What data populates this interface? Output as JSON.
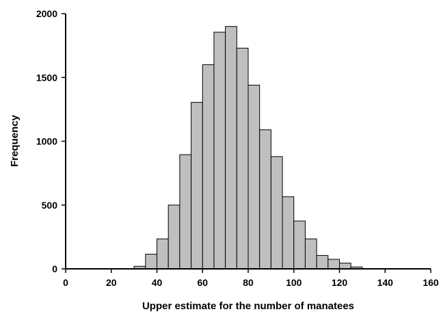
{
  "chart_data": {
    "type": "bar",
    "title": "",
    "xlabel": "Upper estimate for the number of manatees",
    "ylabel": "Frequency",
    "xlim": [
      0,
      160
    ],
    "ylim": [
      0,
      2000
    ],
    "x_ticks": [
      0,
      20,
      40,
      60,
      80,
      100,
      120,
      140,
      160
    ],
    "y_ticks": [
      0,
      500,
      1000,
      1500,
      2000
    ],
    "bin_width": 5,
    "bins": [
      {
        "start": 30,
        "value": 20
      },
      {
        "start": 35,
        "value": 115
      },
      {
        "start": 40,
        "value": 235
      },
      {
        "start": 45,
        "value": 500
      },
      {
        "start": 50,
        "value": 895
      },
      {
        "start": 55,
        "value": 1305
      },
      {
        "start": 60,
        "value": 1600
      },
      {
        "start": 65,
        "value": 1855
      },
      {
        "start": 70,
        "value": 1900
      },
      {
        "start": 75,
        "value": 1730
      },
      {
        "start": 80,
        "value": 1440
      },
      {
        "start": 85,
        "value": 1090
      },
      {
        "start": 90,
        "value": 880
      },
      {
        "start": 95,
        "value": 565
      },
      {
        "start": 100,
        "value": 375
      },
      {
        "start": 105,
        "value": 235
      },
      {
        "start": 110,
        "value": 105
      },
      {
        "start": 115,
        "value": 75
      },
      {
        "start": 120,
        "value": 45
      },
      {
        "start": 125,
        "value": 15
      }
    ],
    "bar_color": "#bfbfbf",
    "grid": false
  }
}
